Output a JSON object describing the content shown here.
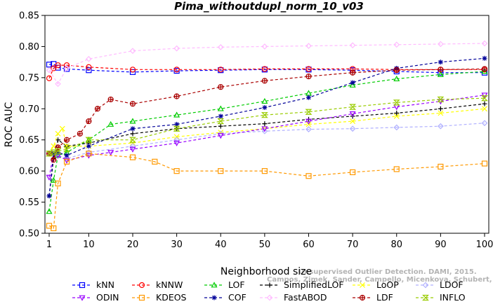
{
  "chart_data": {
    "type": "line",
    "title": "Pima_withoutdupl_norm_10_v03",
    "xlabel": "Neighborhood size",
    "ylabel": "ROC AUC",
    "xlim": [
      1,
      100
    ],
    "ylim": [
      0.5,
      0.85
    ],
    "x_ticks": [
      1,
      10,
      20,
      30,
      40,
      50,
      60,
      70,
      80,
      90,
      100
    ],
    "y_ticks": [
      0.5,
      0.55,
      0.6,
      0.65,
      0.7,
      0.75,
      0.8,
      0.85
    ],
    "grid": false,
    "legend_position": "bottom",
    "watermark_lines": [
      "Unsupervised Outlier Detection. DAMI, 2015.",
      "Campos, Zimek, Sander, Campello, Micenkova, Schubert, Assent, Houle"
    ],
    "series": [
      {
        "name": "kNN",
        "color": "#0000ff",
        "marker": "square",
        "points": [
          [
            1,
            0.771
          ],
          [
            2,
            0.772
          ],
          [
            3,
            0.766
          ],
          [
            5,
            0.764
          ],
          [
            10,
            0.762
          ],
          [
            20,
            0.759
          ],
          [
            30,
            0.761
          ],
          [
            40,
            0.762
          ],
          [
            50,
            0.763
          ],
          [
            60,
            0.763
          ],
          [
            70,
            0.762
          ],
          [
            80,
            0.76
          ],
          [
            90,
            0.758
          ],
          [
            100,
            0.758
          ]
        ]
      },
      {
        "name": "kNNW",
        "color": "#ff0000",
        "marker": "circle",
        "points": [
          [
            1,
            0.749
          ],
          [
            2,
            0.765
          ],
          [
            3,
            0.77
          ],
          [
            5,
            0.77
          ],
          [
            10,
            0.767
          ],
          [
            20,
            0.763
          ],
          [
            30,
            0.763
          ],
          [
            40,
            0.763
          ],
          [
            50,
            0.764
          ],
          [
            60,
            0.764
          ],
          [
            70,
            0.764
          ],
          [
            80,
            0.763
          ],
          [
            90,
            0.763
          ],
          [
            100,
            0.763
          ]
        ]
      },
      {
        "name": "LOF",
        "color": "#00cc00",
        "marker": "triangle-up",
        "points": [
          [
            1,
            0.535
          ],
          [
            2,
            0.585
          ],
          [
            3,
            0.625
          ],
          [
            5,
            0.63
          ],
          [
            10,
            0.65
          ],
          [
            15,
            0.675
          ],
          [
            20,
            0.68
          ],
          [
            30,
            0.69
          ],
          [
            40,
            0.7
          ],
          [
            50,
            0.712
          ],
          [
            60,
            0.725
          ],
          [
            70,
            0.738
          ],
          [
            80,
            0.748
          ],
          [
            90,
            0.755
          ],
          [
            100,
            0.76
          ]
        ]
      },
      {
        "name": "SimplifiedLOF",
        "color": "#000000",
        "marker": "plus",
        "points": [
          [
            1,
            0.56
          ],
          [
            2,
            0.62
          ],
          [
            3,
            0.65
          ],
          [
            5,
            0.64
          ],
          [
            10,
            0.645
          ],
          [
            20,
            0.66
          ],
          [
            30,
            0.668
          ],
          [
            40,
            0.672
          ],
          [
            50,
            0.676
          ],
          [
            60,
            0.683
          ],
          [
            70,
            0.688
          ],
          [
            80,
            0.693
          ],
          [
            90,
            0.7
          ],
          [
            100,
            0.708
          ]
        ]
      },
      {
        "name": "LoOP",
        "color": "#ffff00",
        "marker": "x",
        "points": [
          [
            1,
            0.628
          ],
          [
            2,
            0.64
          ],
          [
            3,
            0.66
          ],
          [
            4,
            0.668
          ],
          [
            5,
            0.64
          ],
          [
            10,
            0.64
          ],
          [
            20,
            0.645
          ],
          [
            30,
            0.655
          ],
          [
            40,
            0.662
          ],
          [
            50,
            0.668
          ],
          [
            60,
            0.675
          ],
          [
            70,
            0.68
          ],
          [
            80,
            0.688
          ],
          [
            90,
            0.693
          ],
          [
            100,
            0.7
          ]
        ]
      },
      {
        "name": "LDOF",
        "color": "#b0b0ff",
        "marker": "diamond",
        "points": [
          [
            1,
            0.628
          ],
          [
            3,
            0.625
          ],
          [
            5,
            0.62
          ],
          [
            10,
            0.63
          ],
          [
            20,
            0.64
          ],
          [
            30,
            0.65
          ],
          [
            40,
            0.66
          ],
          [
            50,
            0.664
          ],
          [
            60,
            0.667
          ],
          [
            70,
            0.668
          ],
          [
            80,
            0.67
          ],
          [
            90,
            0.672
          ],
          [
            100,
            0.677
          ]
        ]
      },
      {
        "name": "ODIN",
        "color": "#9900ff",
        "marker": "triangle-down",
        "points": [
          [
            1,
            0.59
          ],
          [
            2,
            0.628
          ],
          [
            3,
            0.625
          ],
          [
            5,
            0.617
          ],
          [
            10,
            0.625
          ],
          [
            15,
            0.63
          ],
          [
            20,
            0.635
          ],
          [
            30,
            0.645
          ],
          [
            40,
            0.657
          ],
          [
            50,
            0.668
          ],
          [
            60,
            0.68
          ],
          [
            70,
            0.692
          ],
          [
            80,
            0.703
          ],
          [
            90,
            0.712
          ],
          [
            100,
            0.722
          ]
        ]
      },
      {
        "name": "KDEOS",
        "color": "#ff9900",
        "marker": "square",
        "points": [
          [
            1,
            0.512
          ],
          [
            2,
            0.508
          ],
          [
            3,
            0.58
          ],
          [
            5,
            0.615
          ],
          [
            10,
            0.628
          ],
          [
            20,
            0.622
          ],
          [
            25,
            0.615
          ],
          [
            30,
            0.6
          ],
          [
            40,
            0.6
          ],
          [
            50,
            0.6
          ],
          [
            60,
            0.592
          ],
          [
            70,
            0.598
          ],
          [
            80,
            0.603
          ],
          [
            90,
            0.607
          ],
          [
            100,
            0.612
          ]
        ]
      },
      {
        "name": "COF",
        "color": "#000099",
        "marker": "star",
        "points": [
          [
            1,
            0.56
          ],
          [
            2,
            0.628
          ],
          [
            3,
            0.63
          ],
          [
            5,
            0.625
          ],
          [
            10,
            0.64
          ],
          [
            20,
            0.668
          ],
          [
            30,
            0.675
          ],
          [
            40,
            0.688
          ],
          [
            50,
            0.702
          ],
          [
            60,
            0.718
          ],
          [
            70,
            0.742
          ],
          [
            80,
            0.765
          ],
          [
            90,
            0.775
          ],
          [
            100,
            0.781
          ]
        ]
      },
      {
        "name": "FastABOD",
        "color": "#ffbbff",
        "marker": "diamond",
        "points": [
          [
            1,
            0.762
          ],
          [
            3,
            0.74
          ],
          [
            5,
            0.765
          ],
          [
            10,
            0.78
          ],
          [
            20,
            0.793
          ],
          [
            30,
            0.797
          ],
          [
            40,
            0.799
          ],
          [
            50,
            0.8
          ],
          [
            60,
            0.801
          ],
          [
            70,
            0.802
          ],
          [
            80,
            0.803
          ],
          [
            90,
            0.804
          ],
          [
            100,
            0.805
          ]
        ]
      },
      {
        "name": "LDF",
        "color": "#aa0000",
        "marker": "circle-plus",
        "points": [
          [
            1,
            0.628
          ],
          [
            2,
            0.618
          ],
          [
            3,
            0.638
          ],
          [
            5,
            0.65
          ],
          [
            8,
            0.66
          ],
          [
            10,
            0.68
          ],
          [
            12,
            0.7
          ],
          [
            15,
            0.715
          ],
          [
            20,
            0.708
          ],
          [
            30,
            0.72
          ],
          [
            40,
            0.735
          ],
          [
            50,
            0.745
          ],
          [
            60,
            0.752
          ],
          [
            70,
            0.758
          ],
          [
            80,
            0.762
          ],
          [
            90,
            0.763
          ],
          [
            100,
            0.764
          ]
        ]
      },
      {
        "name": "INFLO",
        "color": "#99cc00",
        "marker": "hourglass",
        "points": [
          [
            1,
            0.628
          ],
          [
            2,
            0.63
          ],
          [
            3,
            0.632
          ],
          [
            5,
            0.635
          ],
          [
            10,
            0.65
          ],
          [
            20,
            0.65
          ],
          [
            30,
            0.668
          ],
          [
            40,
            0.68
          ],
          [
            50,
            0.69
          ],
          [
            60,
            0.695
          ],
          [
            70,
            0.703
          ],
          [
            80,
            0.71
          ],
          [
            90,
            0.715
          ],
          [
            100,
            0.717
          ]
        ]
      }
    ],
    "legend_layout": [
      [
        "kNN",
        "kNNW",
        "LOF",
        "SimplifiedLOF",
        "LoOP",
        "LDOF"
      ],
      [
        "ODIN",
        "KDEOS",
        "COF",
        "FastABOD",
        "LDF",
        "INFLO"
      ]
    ]
  }
}
